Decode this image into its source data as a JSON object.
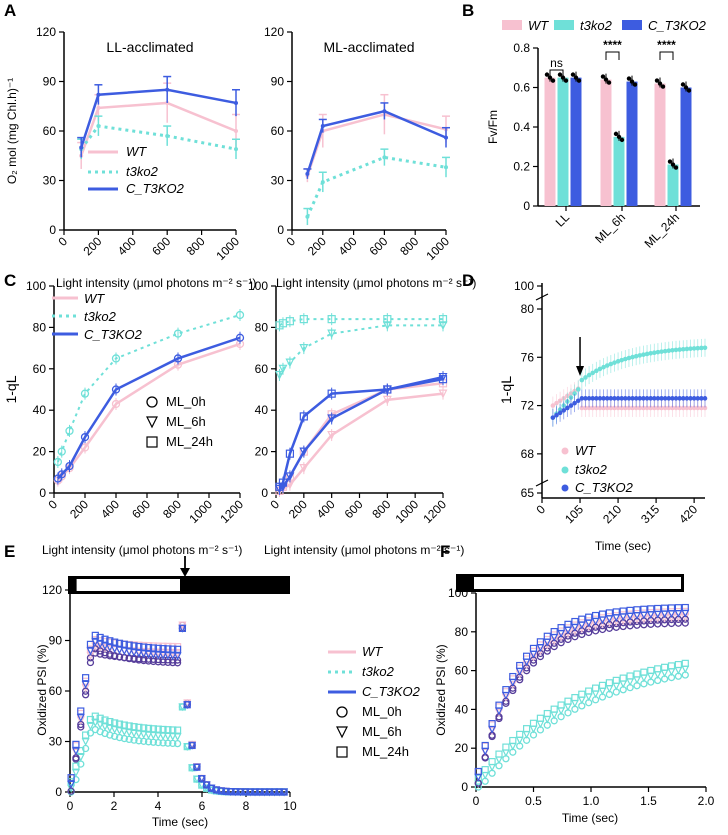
{
  "panel_labels": [
    "A",
    "B",
    "C",
    "D",
    "E",
    "F"
  ],
  "colors": {
    "wt": "#f7c1d0",
    "t3ko2": "#6fe0d8",
    "c_t3ko2": "#3d5ce0",
    "dark_purple": "#553c9a"
  },
  "chart_data": [
    {
      "id": "A1",
      "type": "line",
      "title": "LL-acclimated",
      "xlabel": "Light intensity (μmol photons m⁻² s⁻¹)",
      "ylabel": "O₂ mol (mg Chl.h)⁻¹",
      "xlim": [
        0,
        1000
      ],
      "ylim": [
        0,
        120
      ],
      "xticks": [
        "0",
        "200",
        "400",
        "600",
        "800",
        "1000"
      ],
      "yticks": [
        "0",
        "30",
        "60",
        "90",
        "120"
      ],
      "legend": [
        "WT",
        "t3ko2",
        "C_T3KO2"
      ],
      "series": [
        {
          "name": "WT",
          "x": [
            100,
            200,
            600,
            1000
          ],
          "y": [
            45,
            74,
            77,
            60
          ],
          "err": [
            8,
            8,
            12,
            10
          ]
        },
        {
          "name": "t3ko2",
          "x": [
            100,
            200,
            600,
            1000
          ],
          "y": [
            49,
            63,
            57,
            49
          ],
          "err": [
            6,
            6,
            6,
            6
          ]
        },
        {
          "name": "C_T3KO2",
          "x": [
            100,
            200,
            600,
            1000
          ],
          "y": [
            50,
            82,
            85,
            77
          ],
          "err": [
            6,
            6,
            8,
            8
          ]
        }
      ]
    },
    {
      "id": "A2",
      "type": "line",
      "title": "ML-acclimated",
      "xlabel": "Light intensity (μmol photons m⁻² s⁻¹)",
      "xlim": [
        0,
        1000
      ],
      "ylim": [
        0,
        120
      ],
      "xticks": [
        "0",
        "200",
        "400",
        "600",
        "800",
        "1000"
      ],
      "yticks": [
        "0",
        "30",
        "60",
        "90",
        "120"
      ],
      "series": [
        {
          "name": "WT",
          "x": [
            100,
            200,
            600,
            1000
          ],
          "y": [
            33,
            60,
            70,
            61
          ],
          "err": [
            4,
            10,
            12,
            8
          ]
        },
        {
          "name": "t3ko2",
          "x": [
            100,
            200,
            600,
            1000
          ],
          "y": [
            8,
            29,
            44,
            38
          ],
          "err": [
            5,
            6,
            5,
            6
          ]
        },
        {
          "name": "C_T3KO2",
          "x": [
            100,
            200,
            600,
            1000
          ],
          "y": [
            34,
            63,
            72,
            56
          ],
          "err": [
            3,
            4,
            5,
            6
          ]
        }
      ]
    },
    {
      "id": "B",
      "type": "bar",
      "ylabel": "Fv/Fm",
      "categories": [
        "LL",
        "ML_6h",
        "ML_24h"
      ],
      "ylim": [
        0,
        0.8
      ],
      "yticks": [
        "0",
        "0.2",
        "0.4",
        "0.6",
        "0.8"
      ],
      "legend": [
        "WT",
        "t3ko2",
        "C_T3KO2"
      ],
      "series": [
        {
          "name": "WT",
          "values": [
            0.65,
            0.64,
            0.62
          ]
        },
        {
          "name": "t3ko2",
          "values": [
            0.65,
            0.35,
            0.21
          ]
        },
        {
          "name": "C_T3KO2",
          "values": [
            0.65,
            0.63,
            0.6
          ]
        }
      ],
      "significance": [
        "ns",
        "****",
        "****"
      ]
    },
    {
      "id": "C1",
      "type": "line",
      "ylabel": "1-qL",
      "xlabel": "Light intensity (μmol photons m⁻² s⁻¹)",
      "xlim": [
        0,
        1200
      ],
      "ylim": [
        0,
        100
      ],
      "xticks": [
        "0",
        "200",
        "400",
        "600",
        "800",
        "1000",
        "1200"
      ],
      "yticks": [
        "0",
        "20",
        "40",
        "60",
        "80",
        "100"
      ],
      "legend": [
        "WT",
        "t3ko2",
        "C_T3KO2"
      ],
      "marker_legend": [
        "ML_0h",
        "ML_6h",
        "ML_24h"
      ],
      "series": [
        {
          "name": "WT",
          "x": [
            25,
            50,
            100,
            200,
            400,
            800,
            1200
          ],
          "y": [
            6,
            8,
            12,
            22,
            43,
            62,
            72
          ]
        },
        {
          "name": "t3ko2",
          "x": [
            25,
            50,
            100,
            200,
            400,
            800,
            1200
          ],
          "y": [
            15,
            20,
            30,
            48,
            65,
            77,
            86
          ]
        },
        {
          "name": "C_T3KO2",
          "x": [
            25,
            50,
            100,
            200,
            400,
            800,
            1200
          ],
          "y": [
            7,
            9,
            13,
            27,
            50,
            65,
            75
          ]
        }
      ]
    },
    {
      "id": "C2",
      "type": "line",
      "xlabel": "Light intensity (μmol photons m⁻² s⁻¹)",
      "xlim": [
        0,
        1200
      ],
      "ylim": [
        0,
        100
      ],
      "xticks": [
        "0",
        "200",
        "400",
        "600",
        "800",
        "1000",
        "1200"
      ],
      "yticks": [
        "0",
        "20",
        "40",
        "60",
        "80",
        "100"
      ],
      "series": [
        {
          "name": "WT ML_6h",
          "x": [
            25,
            50,
            100,
            200,
            400,
            800,
            1200
          ],
          "y": [
            1,
            2,
            4,
            12,
            28,
            45,
            48
          ]
        },
        {
          "name": "WT ML_24h",
          "x": [
            25,
            50,
            100,
            200,
            400,
            800,
            1200
          ],
          "y": [
            1,
            3,
            8,
            20,
            38,
            50,
            53
          ]
        },
        {
          "name": "t3ko2 ML_6h",
          "x": [
            25,
            50,
            100,
            200,
            400,
            800,
            1200
          ],
          "y": [
            57,
            60,
            63,
            70,
            77,
            81,
            81
          ]
        },
        {
          "name": "t3ko2 ML_24h",
          "x": [
            25,
            50,
            100,
            200,
            400,
            800,
            1200
          ],
          "y": [
            81,
            82,
            83,
            84,
            84,
            84,
            84
          ]
        },
        {
          "name": "C_T3KO2 ML_6h",
          "x": [
            25,
            50,
            100,
            200,
            400,
            800,
            1200
          ],
          "y": [
            2,
            3,
            8,
            20,
            36,
            50,
            56
          ]
        },
        {
          "name": "C_T3KO2 ML_24h",
          "x": [
            25,
            50,
            100,
            200,
            400,
            800,
            1200
          ],
          "y": [
            3,
            5,
            19,
            37,
            48,
            50,
            55
          ]
        }
      ]
    },
    {
      "id": "D",
      "type": "scatter",
      "ylabel": "1-qL",
      "xlabel": "Time (sec)",
      "xlim": [
        0,
        450
      ],
      "yticks": [
        "65",
        "68",
        "72",
        "76",
        "80",
        "100"
      ],
      "xticks": [
        "0",
        "105",
        "210",
        "315",
        "420"
      ],
      "arrow_at_x": 105,
      "legend": [
        "WT",
        "t3ko2",
        "C_T3KO2"
      ],
      "series": [
        {
          "name": "WT",
          "start": 72.0,
          "plateau": 71.8
        },
        {
          "name": "t3ko2",
          "start": 71.0,
          "plateau": 77.0
        },
        {
          "name": "C_T3KO2",
          "start": 71.0,
          "plateau": 72.6
        }
      ]
    },
    {
      "id": "E",
      "type": "scatter",
      "ylabel": "Oxidized PSI (%)",
      "xlabel": "Time (sec)",
      "xlim": [
        0,
        10
      ],
      "ylim": [
        0,
        120
      ],
      "xticks": [
        "0",
        "2",
        "4",
        "6",
        "8",
        "10"
      ],
      "yticks": [
        "0",
        "30",
        "60",
        "90",
        "120"
      ],
      "legend": [
        "WT",
        "t3ko2",
        "C_T3KO2",
        "ML_0h",
        "ML_6h",
        "ML_24h"
      ],
      "light_bar": {
        "dark_before": 0.3,
        "light_until": 5.0
      },
      "series": [
        {
          "name": "WT",
          "peak": 87,
          "plateau": 82
        },
        {
          "name": "t3ko2",
          "peak": 42,
          "plateau": 32
        },
        {
          "name": "C_T3KO2",
          "peak": 90,
          "plateau": 80
        }
      ]
    },
    {
      "id": "F",
      "type": "scatter",
      "ylabel": "Oxidized PSI (%)",
      "xlabel": "Time (sec)",
      "xlim": [
        0,
        2.0
      ],
      "ylim": [
        0,
        100
      ],
      "xticks": [
        "0",
        "0.5",
        "1.0",
        "1.5",
        "2.0"
      ],
      "yticks": [
        "0",
        "20",
        "40",
        "60",
        "80",
        "100"
      ],
      "series": [
        {
          "name": "WT",
          "final": 88
        },
        {
          "name": "t3ko2",
          "final": 70
        },
        {
          "name": "C_T3KO2",
          "final": 90
        }
      ]
    }
  ]
}
